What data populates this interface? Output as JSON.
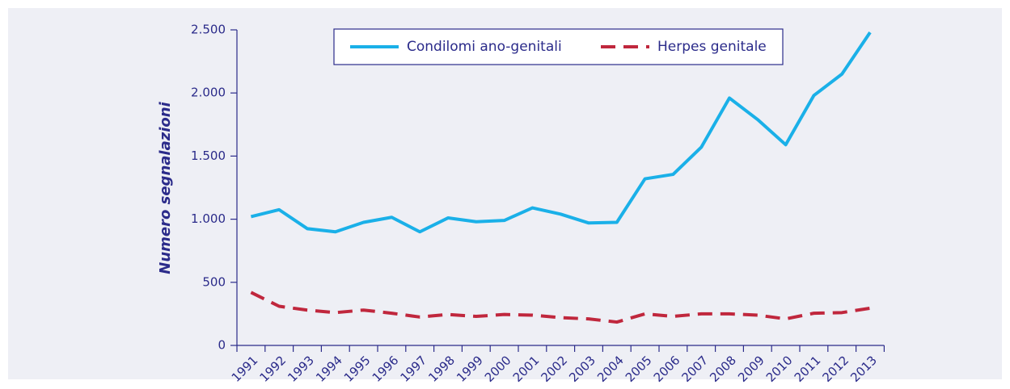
{
  "chart_data": {
    "type": "line",
    "y_label": "Numero segnalazioni",
    "categories": [
      "1991",
      "1992",
      "1993",
      "1994",
      "1995",
      "1996",
      "1997",
      "1998",
      "1999",
      "2000",
      "2001",
      "2002",
      "2003",
      "2004",
      "2005",
      "2006",
      "2007",
      "2008",
      "2009",
      "2010",
      "2011",
      "2012",
      "2013"
    ],
    "series": [
      {
        "name": "Condilomi ano-genitali",
        "color": "#1ab0e8",
        "dash": false,
        "values": [
          1020,
          1075,
          925,
          900,
          975,
          1015,
          900,
          1010,
          980,
          990,
          1090,
          1040,
          970,
          975,
          1320,
          1355,
          1570,
          1960,
          1790,
          1590,
          1980,
          2150,
          2480
        ]
      },
      {
        "name": "Herpes genitale",
        "color": "#c0273d",
        "dash": true,
        "values": [
          420,
          310,
          280,
          260,
          280,
          255,
          225,
          245,
          230,
          245,
          240,
          220,
          210,
          185,
          250,
          230,
          250,
          250,
          240,
          210,
          255,
          260,
          295
        ]
      }
    ],
    "ylim": [
      0,
      2500
    ],
    "yticks": [
      0,
      500,
      {
        "value": 1000,
        "label": "1.000"
      },
      {
        "value": 1500,
        "label": "1.500"
      },
      {
        "value": 2000,
        "label": "2.000"
      },
      {
        "value": 2500,
        "label": "2.500"
      }
    ],
    "legend": "top"
  }
}
